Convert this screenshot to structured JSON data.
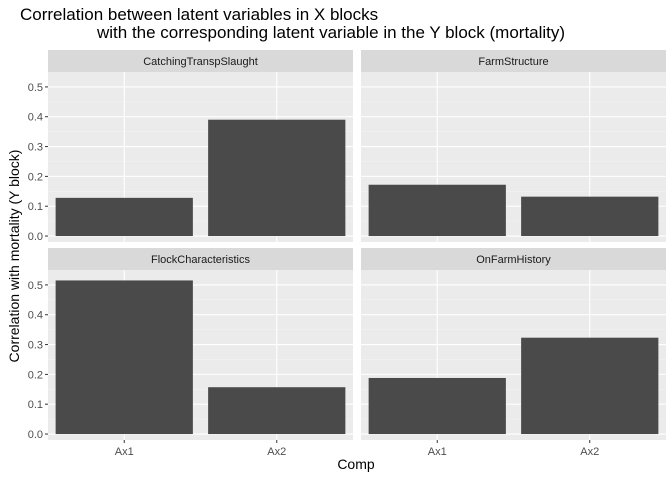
{
  "chart_data": {
    "type": "bar",
    "title_lines": [
      "Correlation between latent variables in X blocks",
      "with the corresponding latent variable in the Y block (mortality)"
    ],
    "xlabel": "Comp",
    "ylabel": "Correlation with mortality (Y block)",
    "categories": [
      "Ax1",
      "Ax2"
    ],
    "ylim": [
      -0.02,
      0.55
    ],
    "yticks": [
      0.0,
      0.1,
      0.2,
      0.3,
      0.4,
      0.5
    ],
    "ytick_labels": [
      "0.0",
      "0.1",
      "0.2",
      "0.3",
      "0.4",
      "0.5"
    ],
    "grid": true,
    "facets": [
      {
        "name": "CatchingTranspSlaught",
        "values": [
          0.128,
          0.39
        ]
      },
      {
        "name": "FarmStructure",
        "values": [
          0.172,
          0.132
        ]
      },
      {
        "name": "FlockCharacteristics",
        "values": [
          0.515,
          0.157
        ]
      },
      {
        "name": "OnFarmHistory",
        "values": [
          0.188,
          0.323
        ]
      }
    ],
    "colors": {
      "bar": "#4a4a4a",
      "panel_bg": "#ebebeb",
      "strip_bg": "#d9d9d9",
      "grid_major": "#ffffff",
      "grid_minor": "#f3f3f3",
      "tick_text": "#4d4d4d",
      "strip_text": "#1a1a1a"
    }
  }
}
